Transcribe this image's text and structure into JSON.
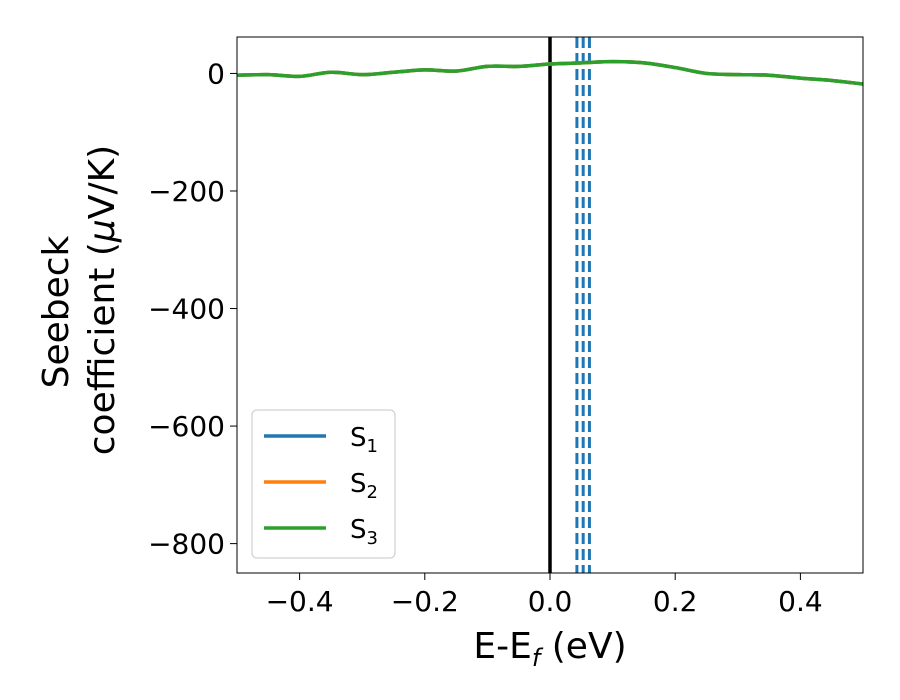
{
  "chart_data": {
    "type": "line",
    "title": "",
    "xlabel": "E-E",
    "xlabel_sub": "f",
    "xlabel_unit": " (eV)",
    "ylabel_line1": "Seebeck",
    "ylabel_line2": "coefficient  (",
    "ylabel_mu": "μ",
    "ylabel_end": "V/K)",
    "xlim": [
      -0.5,
      0.5
    ],
    "ylim": [
      -850,
      62
    ],
    "xticks": [
      -0.4,
      -0.2,
      0.0,
      0.2,
      0.4
    ],
    "xtick_labels": [
      "−0.4",
      "−0.2",
      "0.0",
      "0.2",
      "0.4"
    ],
    "yticks": [
      0,
      -200,
      -400,
      -600,
      -800
    ],
    "ytick_labels": [
      "0",
      "−200",
      "−400",
      "−600",
      "−800"
    ],
    "grid": false,
    "legend_position": "lower-left",
    "series": [
      {
        "name": "S",
        "name_sub": "1",
        "color": "#1f77b4",
        "x": [
          -0.5,
          -0.45,
          -0.4,
          -0.35,
          -0.3,
          -0.25,
          -0.2,
          -0.15,
          -0.1,
          -0.05,
          0.0,
          0.05,
          0.1,
          0.15,
          0.2,
          0.25,
          0.3,
          0.35,
          0.4,
          0.45,
          0.5
        ],
        "y": [
          -3,
          -2,
          -5,
          2,
          -2,
          2,
          6,
          4,
          12,
          12,
          16,
          18,
          20,
          18,
          10,
          0,
          -2,
          -3,
          -8,
          -12,
          -18
        ]
      },
      {
        "name": "S",
        "name_sub": "2",
        "color": "#ff7f0e",
        "x": [
          -0.5,
          -0.45,
          -0.4,
          -0.35,
          -0.3,
          -0.25,
          -0.2,
          -0.15,
          -0.1,
          -0.05,
          0.0,
          0.05,
          0.1,
          0.15,
          0.2,
          0.25,
          0.3,
          0.35,
          0.4,
          0.45,
          0.5
        ],
        "y": [
          -3,
          -2,
          -5,
          2,
          -2,
          2,
          6,
          4,
          12,
          12,
          16,
          18,
          20,
          18,
          10,
          0,
          -2,
          -3,
          -8,
          -12,
          -18
        ]
      },
      {
        "name": "S",
        "name_sub": "3",
        "color": "#2ca02c",
        "x": [
          -0.5,
          -0.45,
          -0.4,
          -0.35,
          -0.3,
          -0.25,
          -0.2,
          -0.15,
          -0.1,
          -0.05,
          0.0,
          0.05,
          0.1,
          0.15,
          0.2,
          0.25,
          0.3,
          0.35,
          0.4,
          0.45,
          0.5
        ],
        "y": [
          -3,
          -2,
          -5,
          2,
          -2,
          2,
          6,
          4,
          12,
          12,
          16,
          18,
          20,
          18,
          10,
          0,
          -2,
          -3,
          -8,
          -12,
          -18
        ]
      }
    ],
    "vlines": [
      {
        "x": 0.0,
        "color": "#000000",
        "style": "solid"
      },
      {
        "x": 0.043,
        "color": "#1f77b4",
        "style": "dashed"
      },
      {
        "x": 0.053,
        "color": "#1f77b4",
        "style": "dashed"
      },
      {
        "x": 0.063,
        "color": "#1f77b4",
        "style": "dashed"
      }
    ]
  }
}
